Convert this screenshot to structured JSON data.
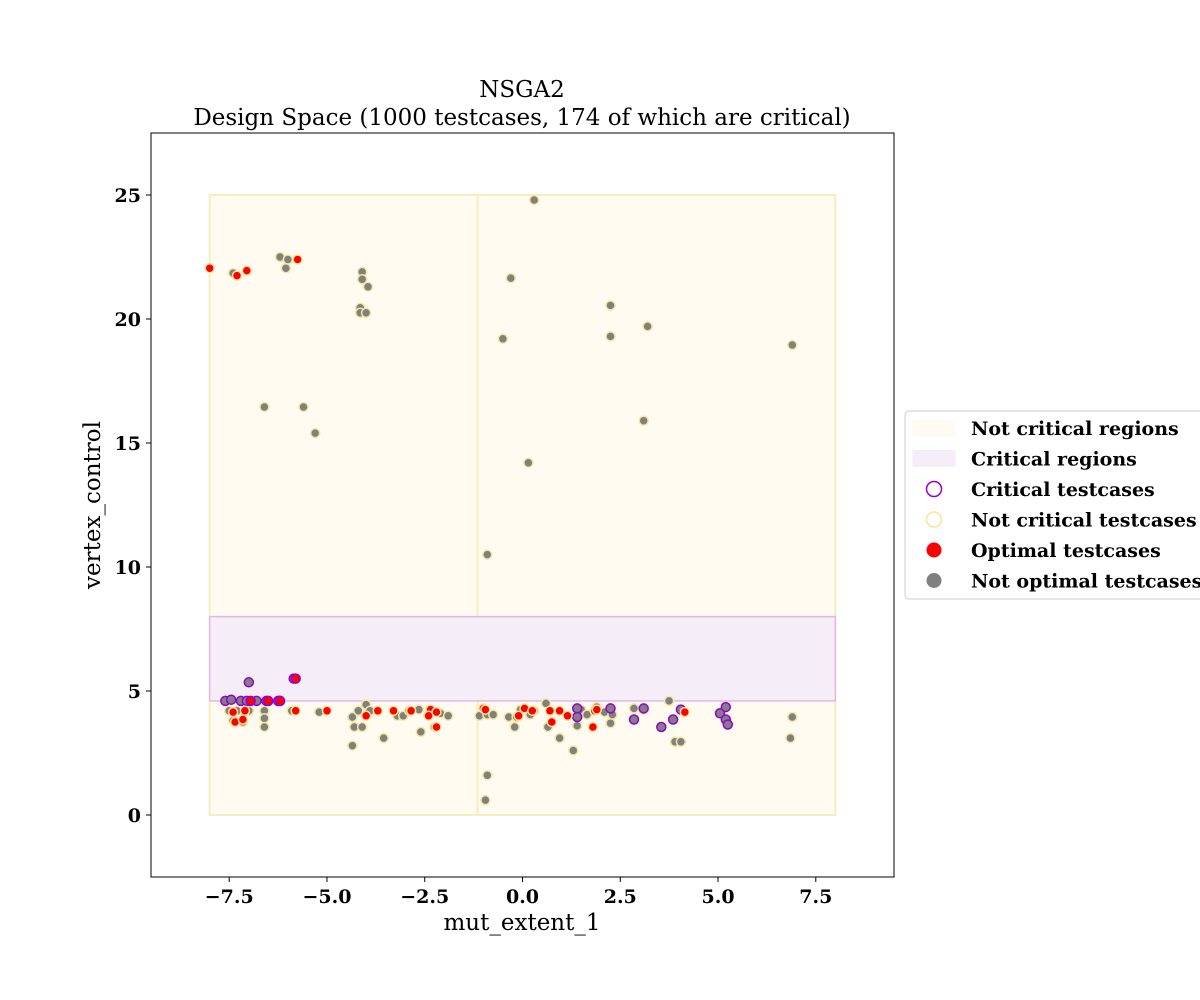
{
  "chart_data": {
    "type": "scatter",
    "title_line1": "NSGA2",
    "title_line2": "Design Space (1000 testcases, 174 of which are critical)",
    "xlabel": "mut_extent_1",
    "ylabel": "vertex_control",
    "xlim": [
      -9.5,
      9.5
    ],
    "ylim": [
      -2.5,
      27.5
    ],
    "xticks": [
      -7.5,
      -5.0,
      -2.5,
      0.0,
      2.5,
      5.0,
      7.5
    ],
    "xtick_labels": [
      "−7.5",
      "−5.0",
      "−2.5",
      "0.0",
      "2.5",
      "5.0",
      "7.5"
    ],
    "yticks": [
      0,
      5,
      10,
      15,
      20,
      25
    ],
    "ytick_labels": [
      "0",
      "5",
      "10",
      "15",
      "20",
      "25"
    ],
    "colors": {
      "not_critical_region_fill": "#fffbf0",
      "not_critical_region_edge": "#f5eec0",
      "critical_region_fill": "#f5eef8",
      "critical_region_edge": "#e2b8e6",
      "critical_edge": "#9400d3",
      "not_critical_edge": "#f5e6a0",
      "optimal_fill": "#ff0000",
      "not_optimal_fill": "#808080"
    },
    "regions": {
      "not_critical": [
        {
          "x": [
            -8,
            -1.15
          ],
          "y": [
            0,
            25
          ]
        },
        {
          "x": [
            -1.15,
            8
          ],
          "y": [
            0,
            25
          ]
        }
      ],
      "critical": [
        {
          "x": [
            -8,
            8
          ],
          "y": [
            4.6,
            8
          ]
        }
      ]
    },
    "series": [
      {
        "name": "Not critical, not optimal",
        "points": [
          [
            0.3,
            24.8
          ],
          [
            -6.2,
            22.5
          ],
          [
            -6.0,
            22.4
          ],
          [
            -6.05,
            22.05
          ],
          [
            -7.4,
            21.85
          ],
          [
            -4.1,
            21.9
          ],
          [
            -4.1,
            21.6
          ],
          [
            -3.95,
            21.3
          ],
          [
            -0.3,
            21.65
          ],
          [
            -4.15,
            20.45
          ],
          [
            -4.15,
            20.25
          ],
          [
            -4.0,
            20.25
          ],
          [
            2.25,
            20.55
          ],
          [
            3.2,
            19.7
          ],
          [
            -0.5,
            19.2
          ],
          [
            2.25,
            19.3
          ],
          [
            6.9,
            18.95
          ],
          [
            -6.6,
            16.45
          ],
          [
            -5.6,
            16.45
          ],
          [
            -5.3,
            15.4
          ],
          [
            3.1,
            15.9
          ],
          [
            0.15,
            14.2
          ],
          [
            -0.9,
            10.5
          ],
          [
            -7.5,
            4.2
          ],
          [
            -7.3,
            4.2
          ],
          [
            -7.0,
            4.2
          ],
          [
            -6.6,
            4.2
          ],
          [
            -6.6,
            3.9
          ],
          [
            -6.6,
            3.55
          ],
          [
            -7.4,
            3.8
          ],
          [
            -7.15,
            3.75
          ],
          [
            -5.9,
            4.2
          ],
          [
            -5.2,
            4.15
          ],
          [
            -4.35,
            3.95
          ],
          [
            -4.3,
            3.55
          ],
          [
            -4.35,
            2.8
          ],
          [
            -4.2,
            4.2
          ],
          [
            -4.1,
            3.55
          ],
          [
            -4.0,
            4.45
          ],
          [
            -3.9,
            4.2
          ],
          [
            -3.55,
            3.1
          ],
          [
            -3.2,
            4.0
          ],
          [
            -3.05,
            4.0
          ],
          [
            -2.9,
            4.2
          ],
          [
            -2.65,
            4.25
          ],
          [
            -2.6,
            3.35
          ],
          [
            -2.4,
            4.05
          ],
          [
            -2.25,
            3.55
          ],
          [
            -2.1,
            4.1
          ],
          [
            -1.9,
            4.0
          ],
          [
            -1.1,
            4.0
          ],
          [
            -0.9,
            4.05
          ],
          [
            -0.75,
            4.05
          ],
          [
            -0.9,
            1.6
          ],
          [
            -0.95,
            0.6
          ],
          [
            -0.35,
            3.95
          ],
          [
            -0.2,
            3.55
          ],
          [
            -0.15,
            3.95
          ],
          [
            -0.05,
            4.25
          ],
          [
            0.2,
            4.05
          ],
          [
            0.3,
            4.2
          ],
          [
            0.6,
            4.5
          ],
          [
            0.65,
            3.55
          ],
          [
            0.95,
            3.1
          ],
          [
            1.15,
            4.0
          ],
          [
            1.3,
            2.6
          ],
          [
            1.4,
            3.6
          ],
          [
            1.45,
            4.05
          ],
          [
            1.5,
            4.25
          ],
          [
            1.65,
            4.05
          ],
          [
            1.9,
            4.35
          ],
          [
            2.1,
            4.15
          ],
          [
            2.25,
            3.7
          ],
          [
            2.3,
            4.05
          ],
          [
            2.85,
            4.3
          ],
          [
            3.1,
            4.25
          ],
          [
            3.75,
            4.6
          ],
          [
            3.9,
            2.95
          ],
          [
            4.05,
            2.95
          ],
          [
            6.85,
            3.1
          ],
          [
            6.9,
            3.95
          ]
        ]
      },
      {
        "name": "Critical, not optimal",
        "points": [
          [
            -7.6,
            4.6
          ],
          [
            -7.45,
            4.65
          ],
          [
            -7.2,
            4.6
          ],
          [
            -7.05,
            4.6
          ],
          [
            -6.8,
            4.6
          ],
          [
            -7.0,
            5.35
          ],
          [
            -6.55,
            4.6
          ],
          [
            -6.25,
            4.6
          ],
          [
            -6.2,
            4.6
          ],
          [
            -5.85,
            5.5
          ],
          [
            1.4,
            4.3
          ],
          [
            1.4,
            3.95
          ],
          [
            2.25,
            4.3
          ],
          [
            2.85,
            3.85
          ],
          [
            3.1,
            4.3
          ],
          [
            3.55,
            3.55
          ],
          [
            3.85,
            3.85
          ],
          [
            4.05,
            4.25
          ],
          [
            5.05,
            4.1
          ],
          [
            5.2,
            4.35
          ],
          [
            5.2,
            3.85
          ],
          [
            5.25,
            3.65
          ]
        ]
      },
      {
        "name": "Optimal, not critical",
        "points": [
          [
            -8.0,
            22.05
          ],
          [
            -7.3,
            21.75
          ],
          [
            -7.05,
            21.95
          ],
          [
            -5.75,
            22.4
          ],
          [
            -7.4,
            4.15
          ],
          [
            -7.35,
            3.75
          ],
          [
            -7.15,
            3.85
          ],
          [
            -7.1,
            4.2
          ],
          [
            -5.8,
            4.2
          ],
          [
            -5.0,
            4.2
          ],
          [
            -4.0,
            4.0
          ],
          [
            -3.7,
            4.2
          ],
          [
            -3.3,
            4.2
          ],
          [
            -2.85,
            4.2
          ],
          [
            -2.35,
            4.25
          ],
          [
            -2.4,
            4.0
          ],
          [
            -2.2,
            3.55
          ],
          [
            -2.2,
            4.15
          ],
          [
            -1.0,
            4.3
          ],
          [
            -0.95,
            4.25
          ],
          [
            -0.1,
            4.0
          ],
          [
            0.05,
            4.3
          ],
          [
            0.25,
            4.2
          ],
          [
            0.7,
            4.2
          ],
          [
            0.75,
            3.75
          ],
          [
            0.95,
            4.2
          ],
          [
            1.15,
            4.0
          ],
          [
            1.8,
            3.55
          ],
          [
            1.85,
            4.2
          ],
          [
            1.9,
            4.25
          ],
          [
            4.15,
            4.15
          ]
        ]
      },
      {
        "name": "Optimal, critical",
        "points": [
          [
            -6.95,
            4.6
          ],
          [
            -6.5,
            4.6
          ],
          [
            -6.2,
            4.6
          ],
          [
            -5.8,
            5.5
          ]
        ]
      }
    ],
    "legend": {
      "placement": "right",
      "entries": [
        {
          "label": "Not critical regions",
          "kind": "patch_not_critical"
        },
        {
          "label": "Critical regions",
          "kind": "patch_critical"
        },
        {
          "label": "Critical testcases",
          "kind": "marker_critical"
        },
        {
          "label": "Not critical testcases",
          "kind": "marker_not_critical"
        },
        {
          "label": "Optimal testcases",
          "kind": "marker_optimal"
        },
        {
          "label": "Not optimal testcases",
          "kind": "marker_not_optimal"
        }
      ]
    }
  }
}
